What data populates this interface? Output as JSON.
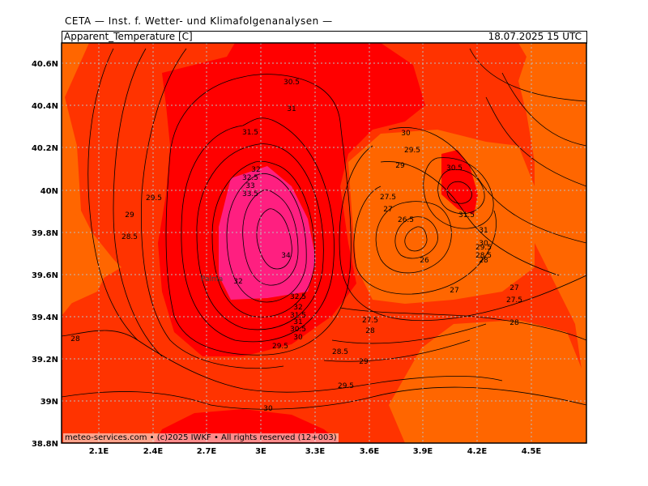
{
  "header": {
    "title": "CETA — Inst. f. Wetter- und Klimafolgenanalysen —",
    "variable": "Apparent_Temperature [C]",
    "valid_time": "18.07.2025 15 UTC"
  },
  "footer": {
    "credit": "meteo-services.com • (c)2025 IWKF • All rights reserved (12+003)"
  },
  "map": {
    "place_label": "Palma",
    "x_ticks": [
      "2.1E",
      "2.4E",
      "2.7E",
      "3E",
      "3.3E",
      "3.6E",
      "3.9E",
      "4.2E",
      "4.5E"
    ],
    "y_ticks": [
      "40.6N",
      "40.4N",
      "40.2N",
      "40N",
      "39.8N",
      "39.6N",
      "39.4N",
      "39.2N",
      "39N",
      "38.8N"
    ],
    "contour_labels": [
      "30.5",
      "31",
      "31.5",
      "32",
      "32.5",
      "33",
      "33.5",
      "34",
      "32",
      "32.5",
      "32",
      "31.5",
      "31",
      "30.5",
      "30",
      "29.5",
      "29.5",
      "29",
      "28.5",
      "28",
      "30",
      "29.5",
      "29",
      "27.5",
      "27",
      "26.5",
      "26",
      "30.5",
      "31.5",
      "31",
      "30",
      "29.5",
      "28.5",
      "28",
      "27",
      "27",
      "27.5",
      "28",
      "27.5",
      "28",
      "28.5",
      "29",
      "29.5",
      "30"
    ],
    "colors": {
      "ocean_orange": "#ff6600",
      "warm_red_orange": "#ff3300",
      "hot_red": "#ff0000",
      "very_hot_magenta": "#ff1f80",
      "grid": "#bbbbbb"
    }
  }
}
